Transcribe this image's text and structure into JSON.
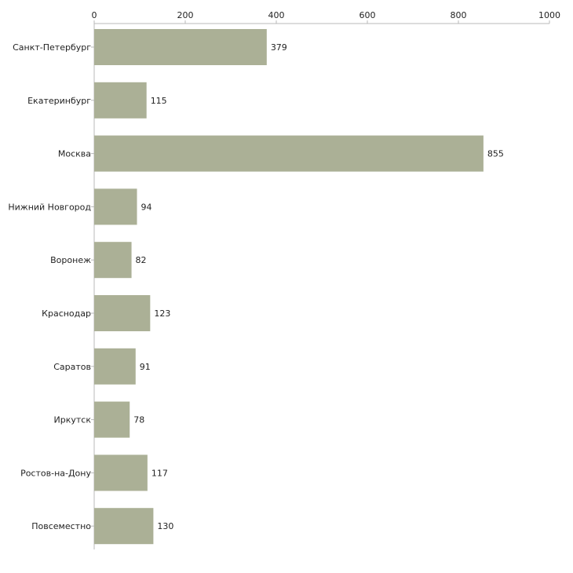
{
  "chart_data": {
    "type": "bar",
    "orientation": "horizontal",
    "title": "",
    "xlabel": "",
    "ylabel": "",
    "xlim": [
      0,
      1000
    ],
    "ticks": [
      0,
      200,
      400,
      600,
      800,
      1000
    ],
    "grid": false,
    "bar_color": "#abb096",
    "categories": [
      "Санкт-Петербург",
      "Екатеринбург",
      "Москва",
      "Нижний Новгород",
      "Воронеж",
      "Краснодар",
      "Саратов",
      "Иркутск",
      "Ростов-на-Дону",
      "Повсеместно"
    ],
    "values": [
      379,
      115,
      855,
      94,
      82,
      123,
      91,
      78,
      117,
      130
    ]
  }
}
